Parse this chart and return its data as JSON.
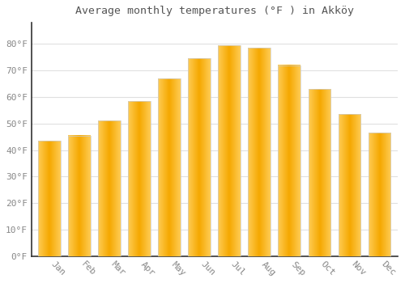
{
  "title": "Average monthly temperatures (°F ) in Akköy",
  "months": [
    "Jan",
    "Feb",
    "Mar",
    "Apr",
    "May",
    "Jun",
    "Jul",
    "Aug",
    "Sep",
    "Oct",
    "Nov",
    "Dec"
  ],
  "values": [
    43.5,
    45.5,
    51.0,
    58.5,
    67.0,
    74.5,
    79.5,
    78.5,
    72.0,
    63.0,
    53.5,
    46.5
  ],
  "bar_color_center": "#F5A800",
  "bar_color_edge": "#FFCC55",
  "bar_border_color": "#cccccc",
  "background_color": "#ffffff",
  "grid_color": "#e0e0e0",
  "text_color": "#888888",
  "title_color": "#555555",
  "ylim": [
    0,
    88
  ],
  "yticks": [
    0,
    10,
    20,
    30,
    40,
    50,
    60,
    70,
    80
  ],
  "ytick_labels": [
    "0°F",
    "10°F",
    "20°F",
    "30°F",
    "40°F",
    "50°F",
    "60°F",
    "70°F",
    "80°F"
  ],
  "bar_width": 0.75,
  "left_spine_color": "#333333",
  "bottom_spine_color": "#333333"
}
